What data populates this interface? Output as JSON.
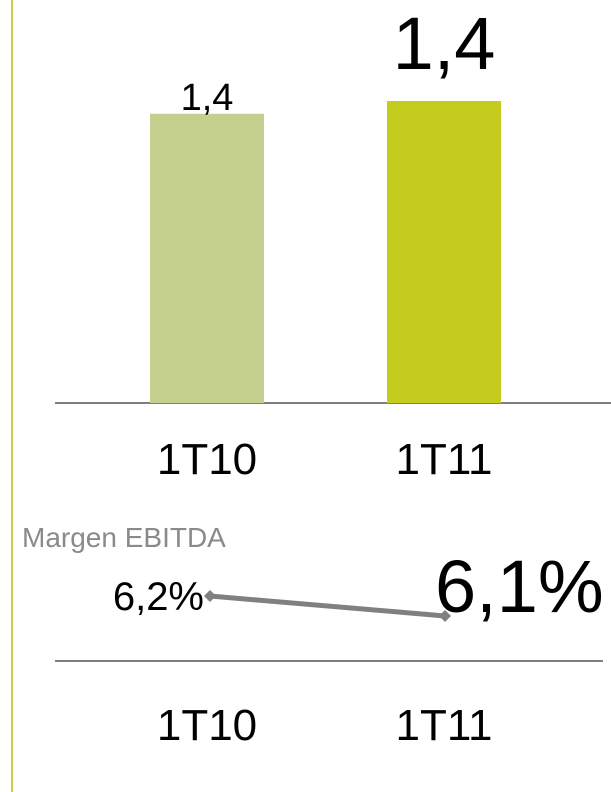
{
  "chart_data": [
    {
      "type": "bar",
      "categories": [
        "1T10",
        "1T11"
      ],
      "values": [
        1.36,
        1.42
      ],
      "value_labels": [
        "1,4",
        "1,4"
      ],
      "colors": [
        "#c5cf8e",
        "#c4cd1e"
      ]
    },
    {
      "type": "line",
      "title": "Margen EBITDA",
      "categories": [
        "1T10",
        "1T11"
      ],
      "values": [
        6.2,
        6.1
      ],
      "value_labels": [
        "6,2%",
        "6,1%"
      ],
      "color": "#808080"
    }
  ]
}
